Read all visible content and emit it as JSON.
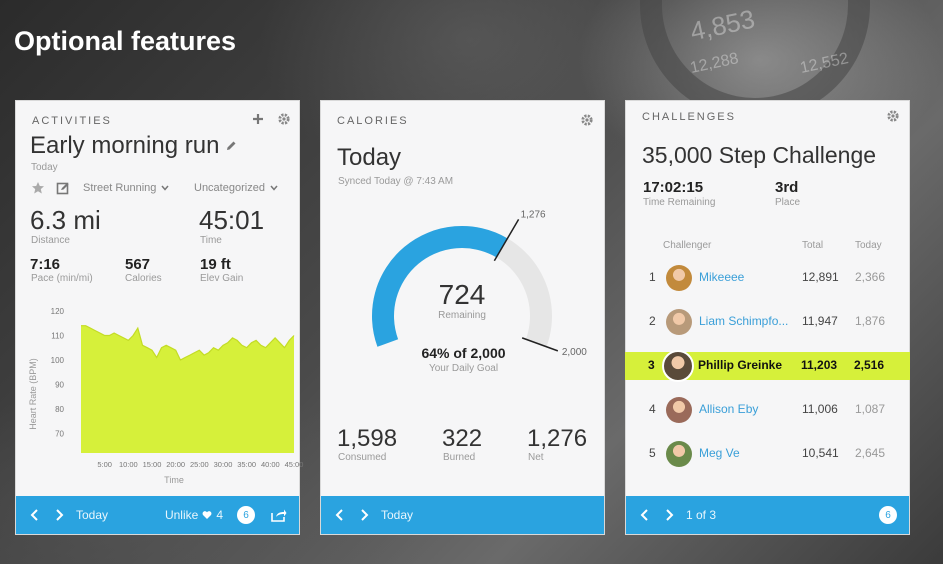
{
  "page": {
    "title": "Optional features"
  },
  "background": {
    "numbers": [
      "4,853",
      "12,288",
      "12,552"
    ]
  },
  "activities": {
    "section_label": "ACTIVITIES",
    "title": "Early morning run",
    "date": "Today",
    "activity_type": "Street Running",
    "category": "Uncategorized",
    "distance": {
      "value": "6.3 mi",
      "label": "Distance"
    },
    "time": {
      "value": "45:01",
      "label": "Time"
    },
    "pace": {
      "value": "7:16",
      "label": "Pace (min/mi)"
    },
    "calories": {
      "value": "567",
      "label": "Calories"
    },
    "elev": {
      "value": "19 ft",
      "label": "Elev Gain"
    },
    "footer": {
      "label": "Today",
      "unlike": "Unlike",
      "likes": "4",
      "comments": "6"
    }
  },
  "chart_data": {
    "type": "area",
    "x": [
      "0:00",
      "1:00",
      "2:00",
      "3:00",
      "4:00",
      "5:00",
      "6:00",
      "7:00",
      "8:00",
      "9:00",
      "10:00",
      "11:00",
      "12:00",
      "13:00",
      "14:00",
      "15:00",
      "16:00",
      "17:00",
      "18:00",
      "19:00",
      "20:00",
      "21:00",
      "22:00",
      "23:00",
      "24:00",
      "25:00",
      "26:00",
      "27:00",
      "28:00",
      "29:00",
      "30:00",
      "31:00",
      "32:00",
      "33:00",
      "34:00",
      "35:00",
      "36:00",
      "37:00",
      "38:00",
      "39:00",
      "40:00",
      "41:00",
      "42:00",
      "43:00",
      "44:00",
      "45:00"
    ],
    "values": [
      114,
      114,
      113,
      112,
      111,
      110,
      110,
      111,
      110,
      109,
      108,
      110,
      113,
      106,
      105,
      104,
      101,
      105,
      106,
      105,
      104,
      100,
      101,
      102,
      103,
      104,
      102,
      103,
      105,
      104,
      106,
      107,
      109,
      108,
      106,
      105,
      107,
      108,
      106,
      105,
      107,
      109,
      107,
      105,
      108,
      110
    ],
    "xticks": [
      "5:00",
      "10:00",
      "15:00",
      "20:00",
      "25:00",
      "30:00",
      "35:00",
      "40:00",
      "45:00"
    ],
    "yticks": [
      "120",
      "110",
      "100",
      "90",
      "80",
      "70"
    ],
    "ylim": [
      62,
      120
    ],
    "xlabel": "Time",
    "ylabel": "Heart Rate (BPM)",
    "color": "#d6f03a"
  },
  "calories": {
    "section_label": "CALORIES",
    "title": "Today",
    "synced": "Synced Today @ 7:43 AM",
    "gauge": {
      "remaining": "724",
      "remaining_label": "Remaining",
      "net_marker": "1,276",
      "goal_marker": "2,000",
      "fraction": 0.638,
      "color_used": "#2aa3e0",
      "color_rest": "#e6e6e6"
    },
    "goal_text": "64% of 2,000",
    "goal_sub": "Your Daily Goal",
    "consumed": {
      "value": "1,598",
      "label": "Consumed"
    },
    "burned": {
      "value": "322",
      "label": "Burned"
    },
    "net": {
      "value": "1,276",
      "label": "Net"
    },
    "footer": {
      "label": "Today"
    }
  },
  "challenges": {
    "section_label": "CHALLENGES",
    "title": "35,000 Step Challenge",
    "time_remaining": {
      "value": "17:02:15",
      "label": "Time Remaining"
    },
    "place": {
      "value": "3rd",
      "label": "Place"
    },
    "headers": {
      "challenger": "Challenger",
      "total": "Total",
      "today": "Today"
    },
    "rows": [
      {
        "rank": "1",
        "name": "Mikeeee",
        "total": "12,891",
        "today": "2,366",
        "highlight": false,
        "avatar_color": "#c28a3c"
      },
      {
        "rank": "2",
        "name": "Liam Schimpfo...",
        "total": "11,947",
        "today": "1,876",
        "highlight": false,
        "avatar_color": "#b89a7a"
      },
      {
        "rank": "3",
        "name": "Phillip Greinke",
        "total": "11,203",
        "today": "2,516",
        "highlight": true,
        "avatar_color": "#5a4a3a"
      },
      {
        "rank": "4",
        "name": "Allison Eby",
        "total": "11,006",
        "today": "1,087",
        "highlight": false,
        "avatar_color": "#9a6a5a"
      },
      {
        "rank": "5",
        "name": "Meg Ve",
        "total": "10,541",
        "today": "2,645",
        "highlight": false,
        "avatar_color": "#6a8a4a"
      }
    ],
    "highlight_color": "#d6f03a",
    "footer": {
      "label": "1 of 3",
      "comments": "6"
    }
  },
  "colors": {
    "accent": "#2aa3e0",
    "link": "#3a9fd8",
    "lime": "#d6f03a"
  }
}
